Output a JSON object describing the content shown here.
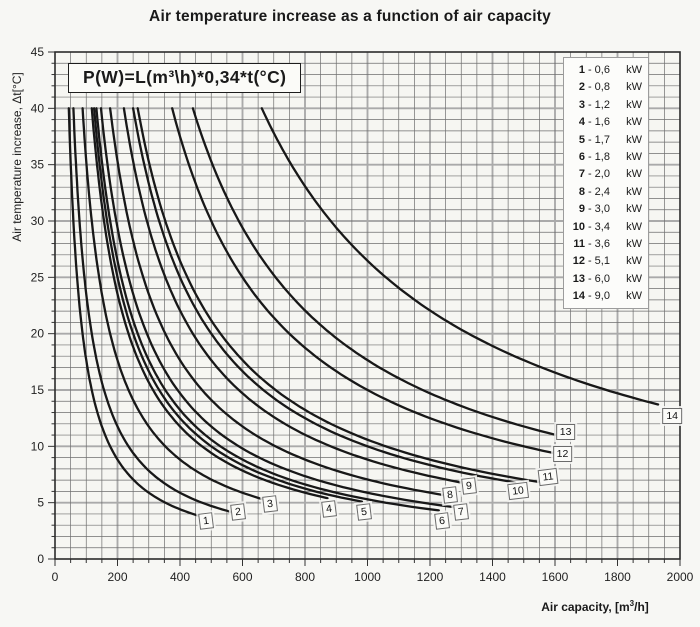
{
  "chart_data": {
    "type": "line",
    "title": "Air temperature increase as a function of air capacity",
    "formula": "P(W)=L(m³\\h)*0,34*t(°C)",
    "xlabel": "Air capacity, [m³/h]",
    "xlabel_parts": {
      "pre": "Air capacity, [m",
      "sup": "3",
      "post": "/h]"
    },
    "ylabel": "Air temperature increase, Δt[°C]",
    "xlim": [
      0,
      2000
    ],
    "ylim": [
      0,
      45
    ],
    "xticks": [
      0,
      200,
      400,
      600,
      800,
      1000,
      1200,
      1400,
      1600,
      1800,
      2000
    ],
    "yticks": [
      0,
      5,
      10,
      15,
      20,
      25,
      30,
      35,
      40,
      45
    ],
    "grid": {
      "on": true,
      "x_minor": 50,
      "x_major": 200,
      "y_minor": 1,
      "y_major": 5
    },
    "legend_position": "top-right",
    "legend_unit": "kW",
    "legend_separator": "-",
    "curve_color": "#181818",
    "relation": "delta_t(°C) = power_kW*1000 / (0.34 * L_m3h)",
    "curve_start_t": 40,
    "series": [
      {
        "num": "1",
        "power_kw": 0.6,
        "power_label": "0,6",
        "x_end": 475,
        "label_x": 483,
        "label_t": 3.4,
        "tilt": -7
      },
      {
        "num": "2",
        "power_kw": 0.8,
        "power_label": "0,8",
        "x_end": 578,
        "label_x": 585,
        "label_t": 4.2,
        "tilt": -7
      },
      {
        "num": "3",
        "power_kw": 1.2,
        "power_label": "1,2",
        "x_end": 683,
        "label_x": 688,
        "label_t": 4.9,
        "tilt": -7
      },
      {
        "num": "4",
        "power_kw": 1.6,
        "power_label": "1,6",
        "x_end": 872,
        "label_x": 878,
        "label_t": 4.4,
        "tilt": -7
      },
      {
        "num": "5",
        "power_kw": 1.7,
        "power_label": "1,7",
        "x_end": 982,
        "label_x": 988,
        "label_t": 4.2,
        "tilt": -7
      },
      {
        "num": "6",
        "power_kw": 1.8,
        "power_label": "1,8",
        "x_end": 1228,
        "label_x": 1238,
        "label_t": 3.4,
        "tilt": -7
      },
      {
        "num": "7",
        "power_kw": 2.0,
        "power_label": "2,0",
        "x_end": 1292,
        "label_x": 1300,
        "label_t": 4.2,
        "tilt": -7
      },
      {
        "num": "8",
        "power_kw": 2.4,
        "power_label": "2,4",
        "x_end": 1255,
        "label_x": 1263,
        "label_t": 5.7,
        "tilt": -7
      },
      {
        "num": "9",
        "power_kw": 3.0,
        "power_label": "3,0",
        "x_end": 1318,
        "label_x": 1326,
        "label_t": 6.5,
        "tilt": -7
      },
      {
        "num": "10",
        "power_kw": 3.4,
        "power_label": "3,4",
        "x_end": 1472,
        "label_x": 1482,
        "label_t": 6.0,
        "tilt": -7
      },
      {
        "num": "11",
        "power_kw": 3.6,
        "power_label": "3,6",
        "x_end": 1565,
        "label_x": 1576,
        "label_t": 7.3,
        "tilt": -7
      },
      {
        "num": "12",
        "power_kw": 5.1,
        "power_label": "5,1",
        "x_end": 1612,
        "label_x": 1624,
        "label_t": 9.3,
        "tilt": 0
      },
      {
        "num": "13",
        "power_kw": 6.0,
        "power_label": "6,0",
        "x_end": 1622,
        "label_x": 1634,
        "label_t": 11.3,
        "tilt": 0
      },
      {
        "num": "14",
        "power_kw": 9.0,
        "power_label": "9,0",
        "x_end": 1930,
        "label_x": 1975,
        "label_t": 12.7,
        "tilt": 0
      }
    ]
  }
}
